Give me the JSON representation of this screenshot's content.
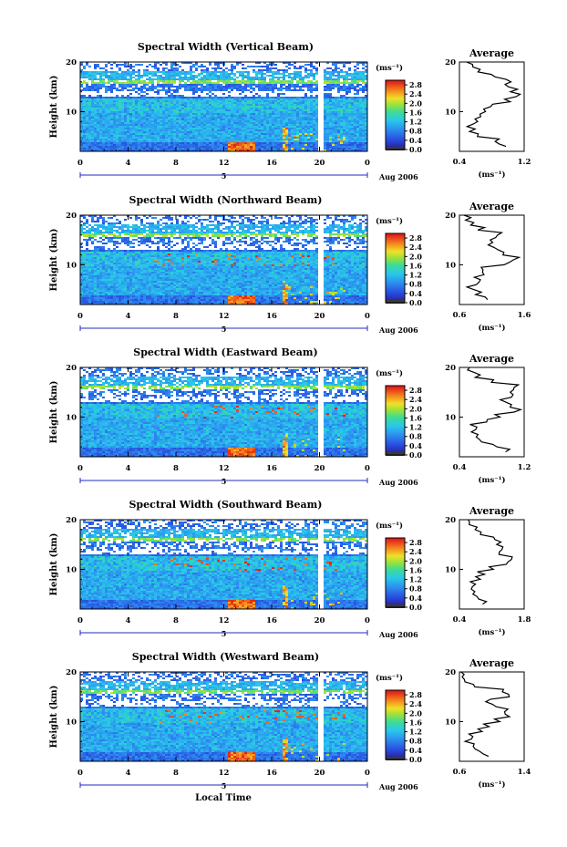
{
  "chart_data": [
    {
      "type": "heatmap",
      "title": "Spectral Width (Vertical Beam)",
      "ylabel": "Height (km)",
      "x_ticks": [
        "0",
        "4",
        "8",
        "12",
        "16",
        "20",
        "0"
      ],
      "y_ticks": [
        "10",
        "20"
      ],
      "xlim": [
        0,
        24
      ],
      "ylim": [
        2,
        20
      ],
      "date_day": "5",
      "date_label": "Aug 2006",
      "colorbar": {
        "unit": "(ms⁻¹)",
        "ticks": [
          "0.0",
          "0.4",
          "0.8",
          "1.2",
          "1.6",
          "2.0",
          "2.4",
          "2.8"
        ],
        "range": [
          0,
          3.0
        ]
      },
      "data_gap_hour": 20,
      "profile": {
        "title": "Average",
        "xlabel": "(ms⁻¹)",
        "x_ticks": [
          "0.4",
          "1.2"
        ],
        "xlim": [
          0.4,
          1.2
        ],
        "y_ticks": [
          "10",
          "20"
        ],
        "heights": [
          3,
          4,
          5,
          6,
          7,
          8,
          9,
          10,
          11,
          12,
          13,
          14,
          15,
          16,
          17,
          18,
          19,
          20
        ],
        "values": [
          0.95,
          0.85,
          0.65,
          0.55,
          0.5,
          0.6,
          0.65,
          0.7,
          0.8,
          1.0,
          1.1,
          1.05,
          1.0,
          1.05,
          0.85,
          0.65,
          0.55,
          0.5
        ]
      }
    },
    {
      "type": "heatmap",
      "title": "Spectral Width (Northward Beam)",
      "ylabel": "Height (km)",
      "x_ticks": [
        "0",
        "4",
        "8",
        "12",
        "16",
        "20",
        "0"
      ],
      "y_ticks": [
        "10",
        "20"
      ],
      "xlim": [
        0,
        24
      ],
      "ylim": [
        2,
        20
      ],
      "date_day": "5",
      "date_label": "Aug 2006",
      "colorbar": {
        "unit": "(ms⁻¹)",
        "ticks": [
          "0.0",
          "0.4",
          "0.8",
          "1.2",
          "1.6",
          "2.0",
          "2.4",
          "2.8"
        ],
        "range": [
          0,
          3.0
        ]
      },
      "data_gap_hour": 20,
      "profile": {
        "title": "Average",
        "xlabel": "(ms⁻¹)",
        "x_ticks": [
          "0.6",
          "1.6"
        ],
        "xlim": [
          0.6,
          1.6
        ],
        "y_ticks": [
          "10",
          "20"
        ],
        "heights": [
          3,
          4,
          5,
          6,
          7,
          8,
          9,
          10,
          11,
          12,
          13,
          14,
          15,
          16,
          17,
          18,
          19,
          20
        ],
        "values": [
          1.0,
          0.85,
          0.8,
          0.85,
          0.9,
          0.95,
          1.0,
          1.3,
          1.45,
          1.25,
          1.2,
          1.05,
          1.1,
          1.2,
          0.9,
          0.75,
          0.7,
          0.65
        ]
      }
    },
    {
      "type": "heatmap",
      "title": "Spectral Width (Eastward Beam)",
      "ylabel": "Height (km)",
      "x_ticks": [
        "0",
        "4",
        "8",
        "12",
        "16",
        "20",
        "0"
      ],
      "y_ticks": [
        "10",
        "20"
      ],
      "xlim": [
        0,
        24
      ],
      "ylim": [
        2,
        20
      ],
      "date_day": "5",
      "date_label": "Aug 2006",
      "colorbar": {
        "unit": "(ms⁻¹)",
        "ticks": [
          "0.0",
          "0.4",
          "0.8",
          "1.2",
          "1.6",
          "2.0",
          "2.4",
          "2.8"
        ],
        "range": [
          0,
          3.0
        ]
      },
      "data_gap_hour": 20,
      "profile": {
        "title": "Average",
        "xlabel": "(ms⁻¹)",
        "x_ticks": [
          "0.4",
          "1.2"
        ],
        "xlim": [
          0.4,
          1.2
        ],
        "y_ticks": [
          "10",
          "20"
        ],
        "heights": [
          3,
          4,
          5,
          6,
          7,
          8,
          9,
          10,
          11,
          12,
          13,
          14,
          15,
          16,
          17,
          18,
          19,
          20
        ],
        "values": [
          0.95,
          0.85,
          0.7,
          0.6,
          0.55,
          0.6,
          0.75,
          0.9,
          1.1,
          1.05,
          0.95,
          1.05,
          1.0,
          1.1,
          0.8,
          0.6,
          0.55,
          0.5
        ]
      }
    },
    {
      "type": "heatmap",
      "title": "Spectral Width (Southward Beam)",
      "ylabel": "Height (km)",
      "x_ticks": [
        "0",
        "4",
        "8",
        "12",
        "16",
        "20",
        "0"
      ],
      "y_ticks": [
        "10",
        "20"
      ],
      "xlim": [
        0,
        24
      ],
      "ylim": [
        2,
        20
      ],
      "date_day": "5",
      "date_label": "Aug 2006",
      "colorbar": {
        "unit": "(ms⁻¹)",
        "ticks": [
          "0.0",
          "0.4",
          "0.8",
          "1.2",
          "1.6",
          "2.0",
          "2.4",
          "2.8"
        ],
        "range": [
          0,
          3.0
        ]
      },
      "data_gap_hour": 20,
      "profile": {
        "title": "Average",
        "xlabel": "(ms⁻¹)",
        "x_ticks": [
          "0.4",
          "1.8"
        ],
        "xlim": [
          0.4,
          1.8
        ],
        "y_ticks": [
          "10",
          "20"
        ],
        "heights": [
          3,
          4,
          5,
          6,
          7,
          8,
          9,
          10,
          11,
          12,
          13,
          14,
          15,
          16,
          17,
          18,
          19,
          20
        ],
        "values": [
          0.9,
          0.8,
          0.7,
          0.65,
          0.7,
          0.8,
          0.9,
          1.1,
          1.4,
          1.5,
          1.3,
          1.35,
          1.25,
          1.2,
          0.9,
          0.7,
          0.6,
          0.55
        ]
      }
    },
    {
      "type": "heatmap",
      "title": "Spectral Width (Westward Beam)",
      "ylabel": "Height (km)",
      "x_ticks": [
        "0",
        "4",
        "8",
        "12",
        "16",
        "20",
        "0"
      ],
      "y_ticks": [
        "10",
        "20"
      ],
      "xlim": [
        0,
        24
      ],
      "ylim": [
        2,
        20
      ],
      "date_day": "5",
      "date_label": "Aug 2006",
      "colorbar": {
        "unit": "(ms⁻¹)",
        "ticks": [
          "0.0",
          "0.4",
          "0.8",
          "1.2",
          "1.6",
          "2.0",
          "2.4",
          "2.8"
        ],
        "range": [
          0,
          3.0
        ]
      },
      "data_gap_hour": 20,
      "profile": {
        "title": "Average",
        "xlabel": "(ms⁻¹)",
        "x_ticks": [
          "0.6",
          "1.4"
        ],
        "xlim": [
          0.6,
          1.4
        ],
        "y_ticks": [
          "10",
          "20"
        ],
        "heights": [
          3,
          4,
          5,
          6,
          7,
          8,
          9,
          10,
          11,
          12,
          13,
          14,
          15,
          16,
          17,
          18,
          19,
          20
        ],
        "values": [
          0.95,
          0.85,
          0.75,
          0.7,
          0.75,
          0.85,
          0.95,
          1.1,
          1.2,
          1.15,
          1.05,
          0.95,
          1.2,
          1.15,
          0.8,
          0.7,
          0.65,
          0.6
        ]
      }
    }
  ],
  "x_axis_label": "Local Time",
  "colors": {
    "low": "#2a1e8c",
    "mid": "#29b6e8",
    "high": "#e82818",
    "axis": "#000000",
    "date_line": "#1f2bbf"
  }
}
